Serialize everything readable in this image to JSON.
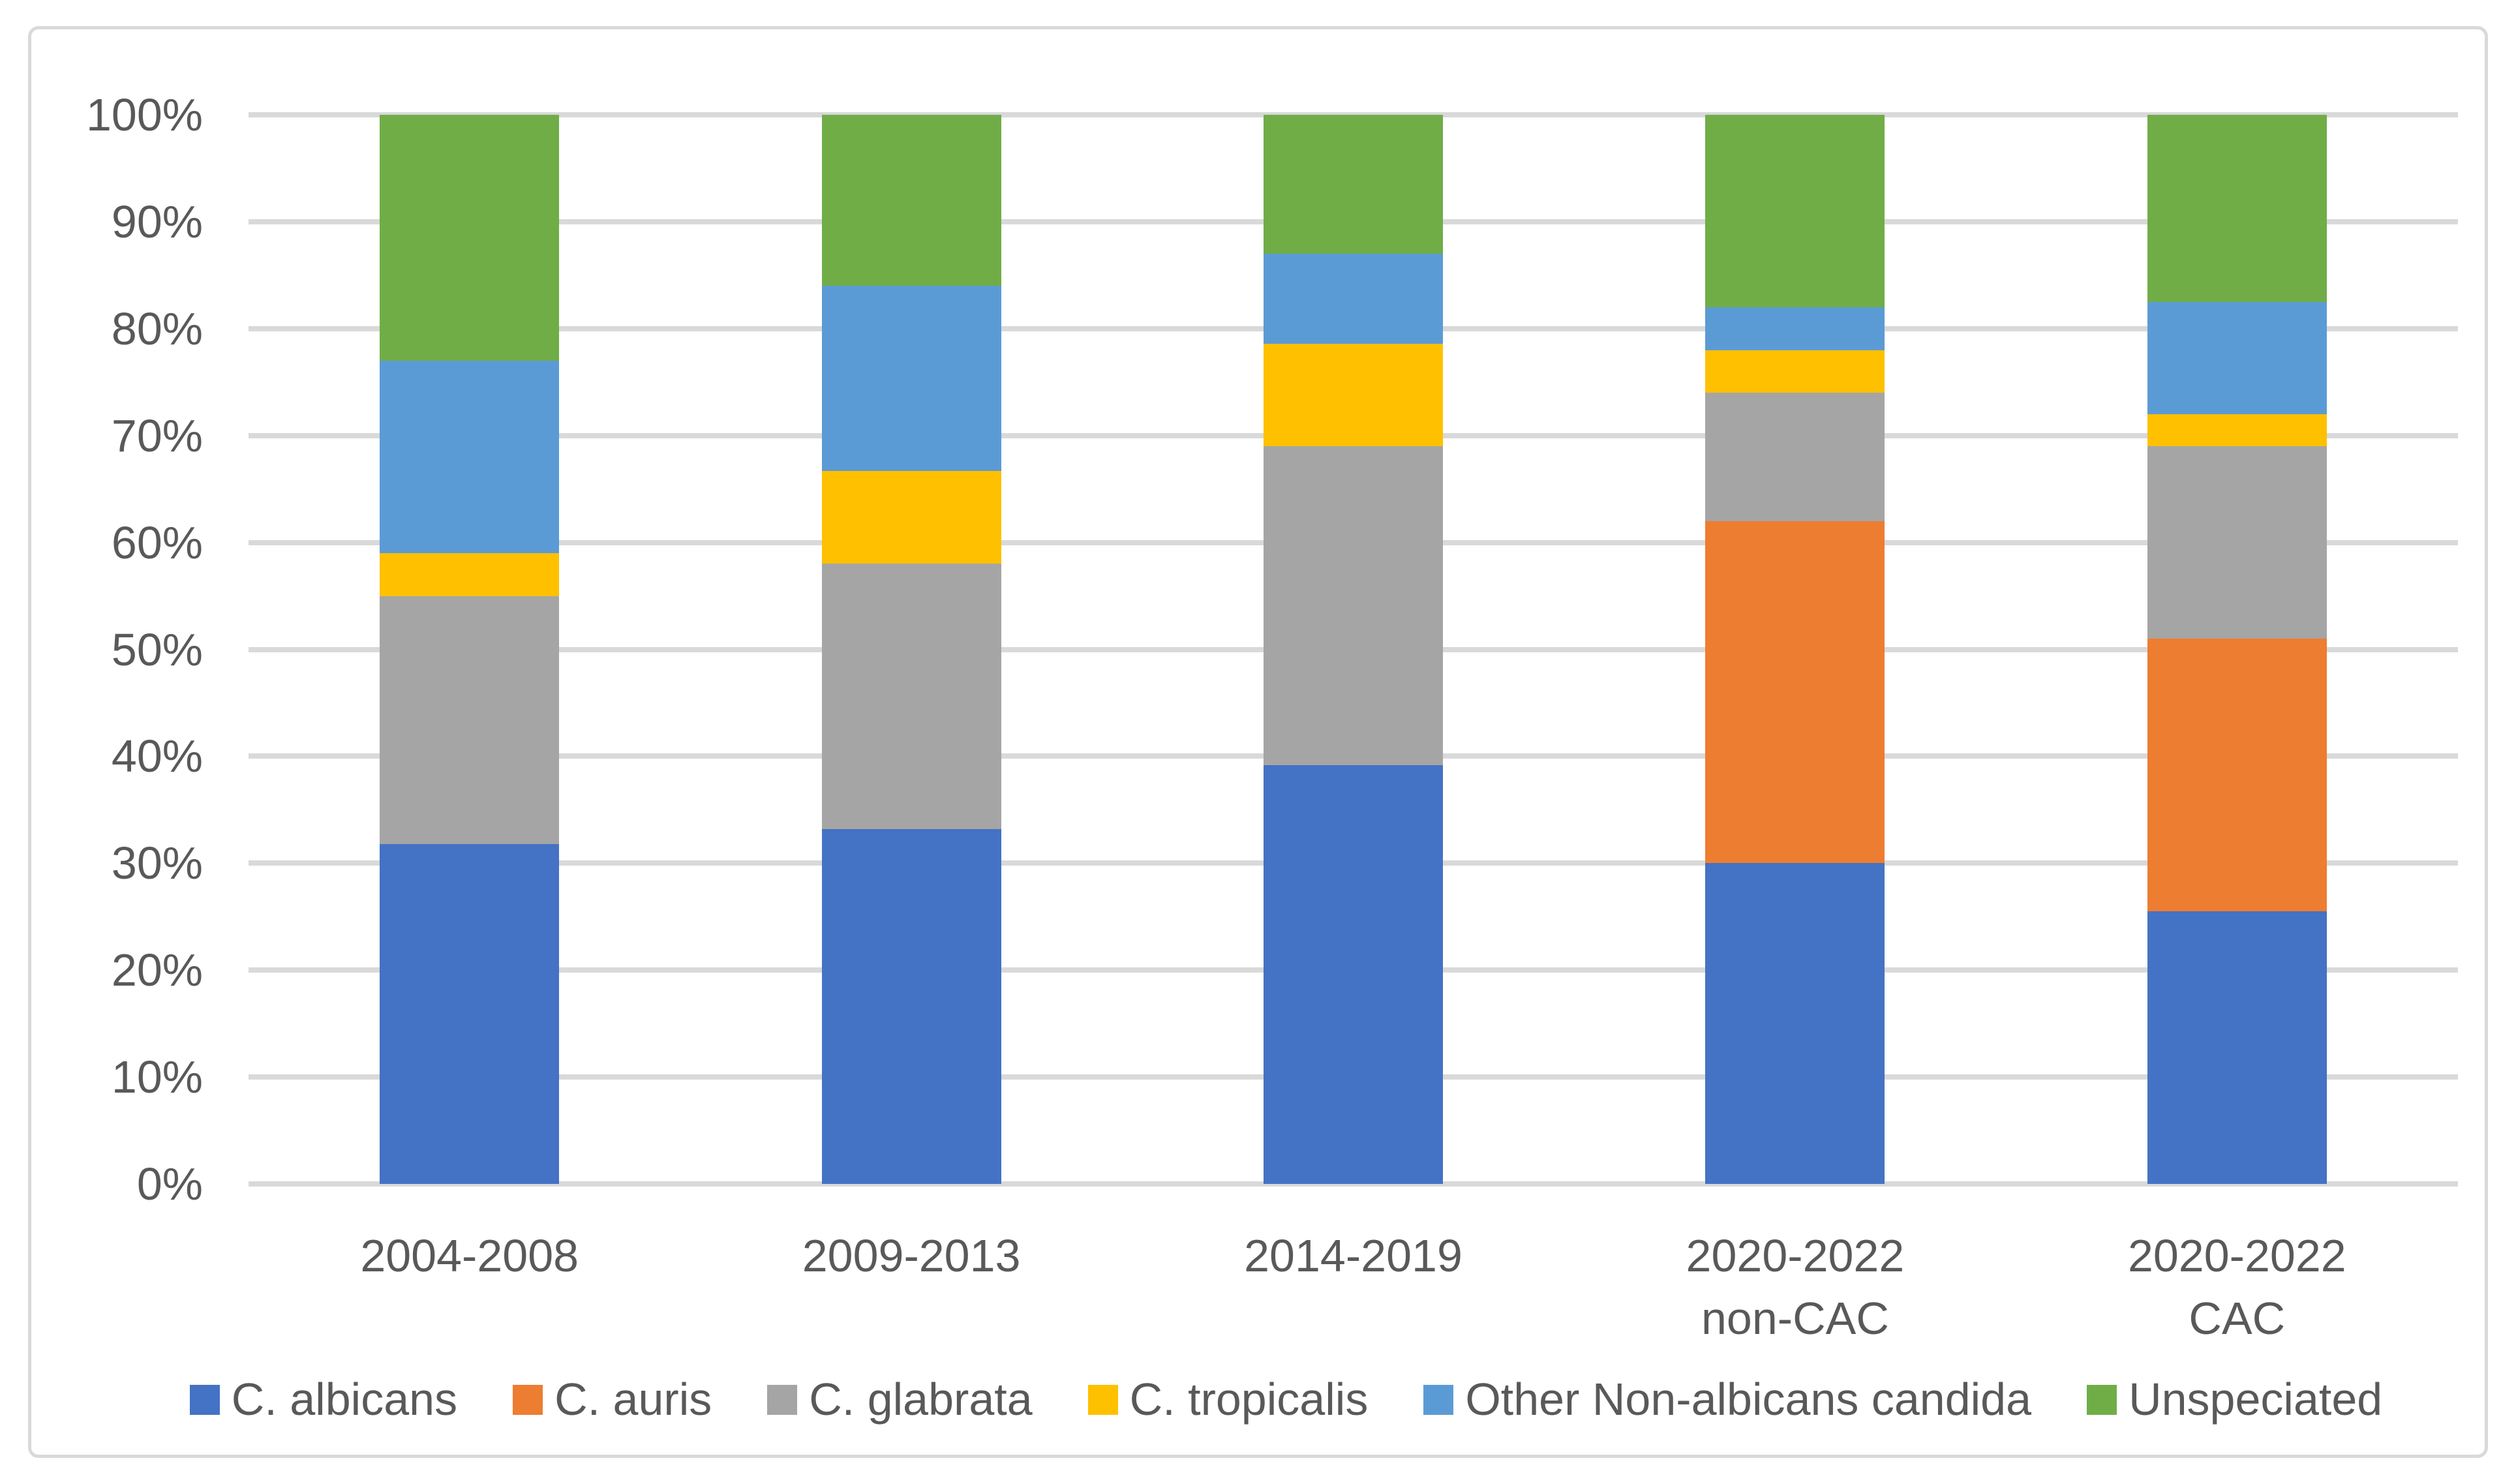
{
  "chart_data": {
    "type": "bar",
    "variant": "stacked-100-percent",
    "title": "",
    "xlabel": "",
    "ylabel": "",
    "grid": true,
    "legend_position": "bottom",
    "categories": [
      "2004-2008",
      "2009-2013",
      "2014-2019",
      "2020-2022\nnon-CAC",
      "2020-2022\nCAC"
    ],
    "series": [
      {
        "name": "C. albicans",
        "color": "#4472C4",
        "values": [
          31.8,
          33.2,
          39.2,
          30.0,
          25.5
        ]
      },
      {
        "name": "C. auris",
        "color": "#ED7D31",
        "values": [
          0.0,
          0.0,
          0.0,
          32.0,
          25.5
        ]
      },
      {
        "name": "C. glabrata",
        "color": "#A5A5A5",
        "values": [
          23.2,
          24.8,
          29.8,
          12.0,
          18.0
        ]
      },
      {
        "name": "C. tropicalis",
        "color": "#FFC000",
        "values": [
          4.0,
          8.7,
          9.6,
          4.0,
          3.0
        ]
      },
      {
        "name": "Other Non-albicans candida",
        "color": "#5B9BD5",
        "values": [
          18.0,
          17.3,
          8.4,
          4.0,
          10.5
        ]
      },
      {
        "name": "Unspeciated",
        "color": "#70AD47",
        "values": [
          23.0,
          16.0,
          13.0,
          18.0,
          17.5
        ]
      }
    ],
    "y_axis": {
      "min": 0,
      "max": 100,
      "step": 10,
      "tick_labels": [
        "0%",
        "10%",
        "20%",
        "30%",
        "40%",
        "50%",
        "60%",
        "70%",
        "80%",
        "90%",
        "100%"
      ]
    },
    "colors": {
      "gridline": "#D9D9D9",
      "chart_border": "#D9D9D9",
      "axis_text": "#595959",
      "background": "#FFFFFF"
    }
  }
}
